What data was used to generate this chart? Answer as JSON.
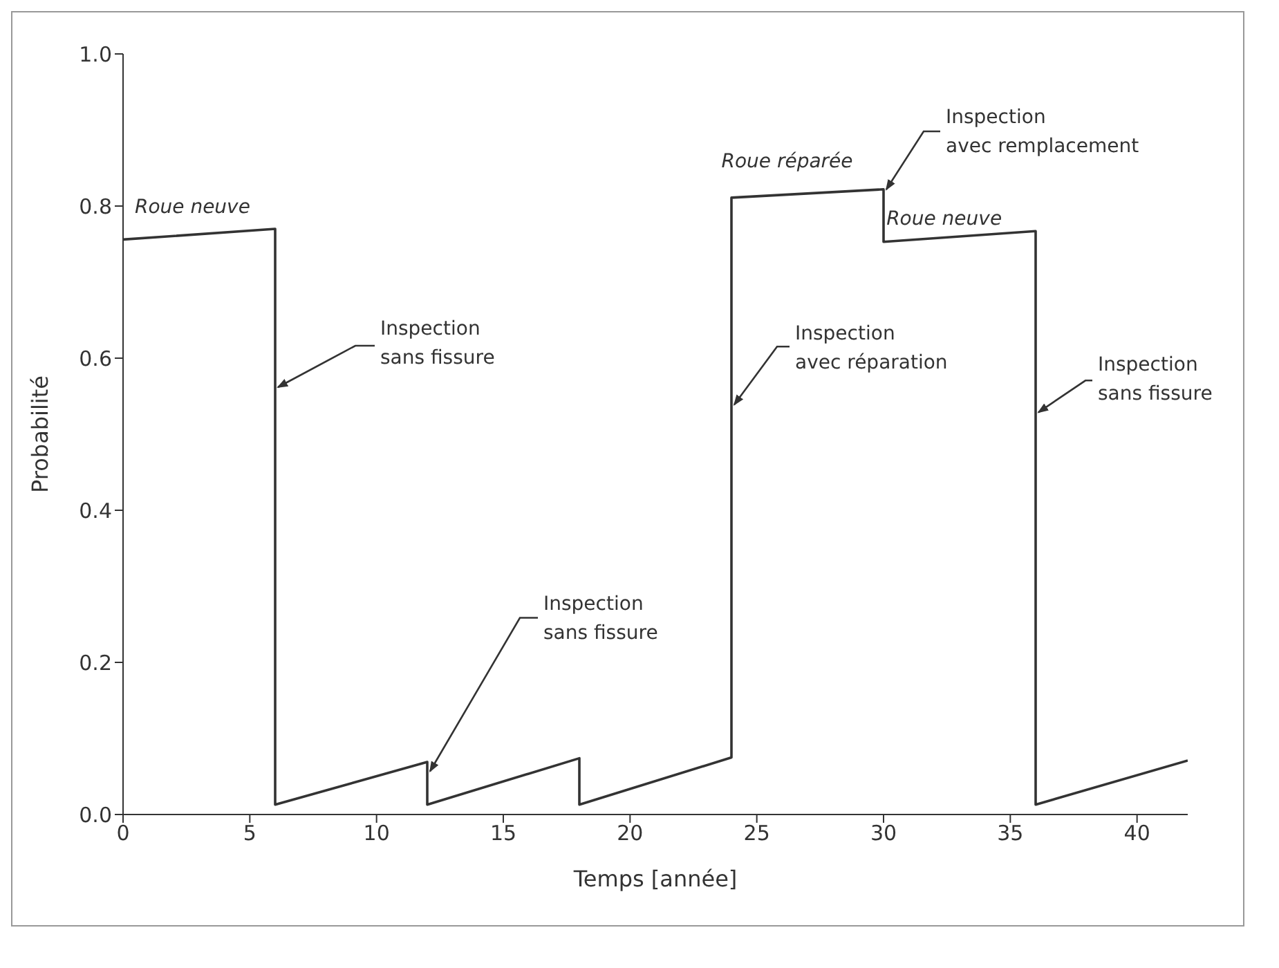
{
  "chart_data": {
    "type": "line",
    "xlabel": "Temps [année]",
    "ylabel": "Probabilité",
    "series": [
      {
        "color": "#333333",
        "x": [
          0,
          6,
          6,
          12,
          12,
          18,
          18,
          24,
          24,
          30,
          30,
          36,
          36,
          42
        ],
        "values": [
          0.756,
          0.77,
          0.013,
          0.069,
          0.013,
          0.074,
          0.013,
          0.075,
          0.811,
          0.822,
          0.753,
          0.767,
          0.013,
          0.071
        ]
      }
    ],
    "xlim": [
      0,
      42
    ],
    "xticks": [
      0,
      5,
      10,
      15,
      20,
      25,
      30,
      35,
      40
    ],
    "ylim": [
      0,
      1
    ],
    "yticks": [
      {
        "value": 0,
        "label": "0.0"
      },
      {
        "value": 0.2,
        "label": "0.2"
      },
      {
        "value": 0.4,
        "label": "0.4"
      },
      {
        "value": 0.6,
        "label": "0.6"
      },
      {
        "value": 0.8,
        "label": "0.8"
      },
      {
        "value": 1,
        "label": "1.0"
      }
    ],
    "grid": false,
    "legend": false,
    "marker": "none",
    "line_style": "solid",
    "annotations": [
      "Roue neuve",
      {
        "text": "Inspection sans fissure",
        "x": 6,
        "y": 0.56
      },
      {
        "text": "Inspection sans fissure",
        "x": 12,
        "y": 0.055
      },
      "Roue réparée",
      {
        "text": "Inspection avec remplacement",
        "x": 30,
        "y": 0.82
      },
      "Roue neuve",
      {
        "text": "Inspection avec réparation",
        "x": 24,
        "y": 0.537
      },
      {
        "text": "Inspection sans fissure",
        "x": 36,
        "y": 0.527
      }
    ]
  }
}
